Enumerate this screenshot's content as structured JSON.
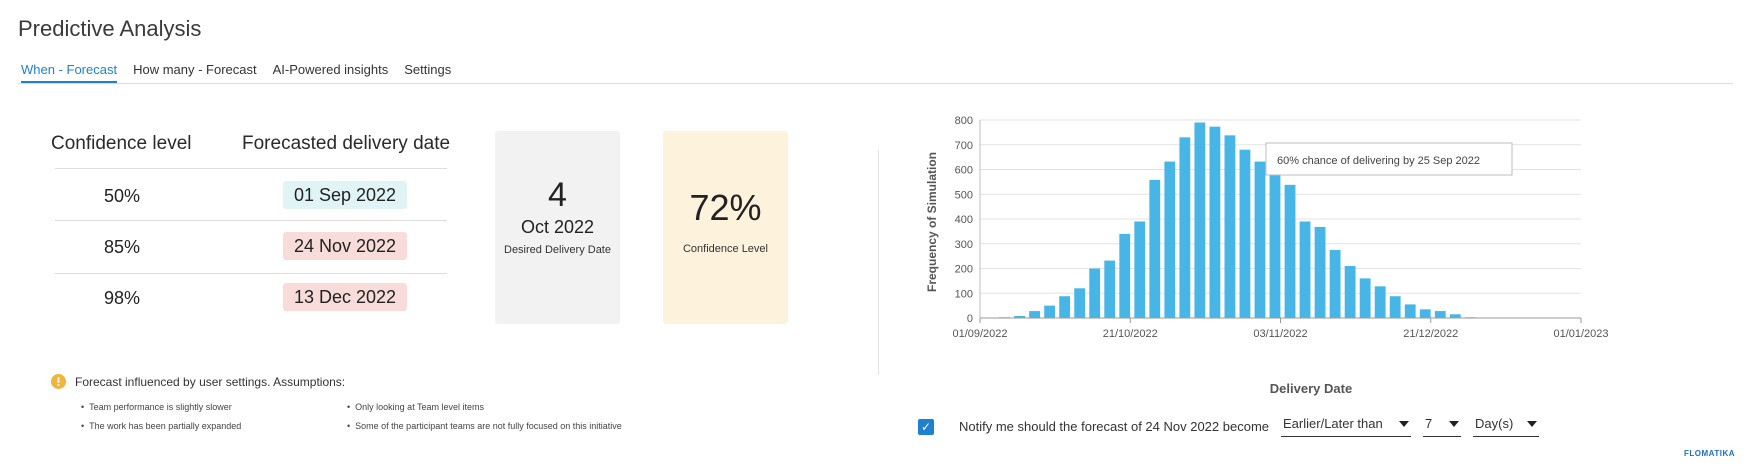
{
  "page": {
    "title": "Predictive Analysis"
  },
  "tabs": [
    {
      "label": "When - Forecast",
      "active": true
    },
    {
      "label": "How many - Forecast",
      "active": false
    },
    {
      "label": "AI-Powered insights",
      "active": false
    },
    {
      "label": "Settings",
      "active": false
    }
  ],
  "forecast_table": {
    "header_confidence": "Confidence level",
    "header_date": "Forecasted delivery date",
    "rows": [
      {
        "confidence": "50%",
        "date": "01 Sep 2022",
        "color": "#e0f4f5"
      },
      {
        "confidence": "85%",
        "date": "24 Nov 2022",
        "color": "#f7dcd9"
      },
      {
        "confidence": "98%",
        "date": "13 Dec 2022",
        "color": "#f7dcd9"
      }
    ]
  },
  "desired_card": {
    "day": "4",
    "month_year": "Oct 2022",
    "label": "Desired Delivery Date",
    "color": "#f2f2f2"
  },
  "confidence_card": {
    "value": "72%",
    "label": "Confidence Level",
    "color": "#fdf2dc"
  },
  "assumptions": {
    "icon": "warning-icon",
    "icon_color": "#f2b43c",
    "title": "Forecast influenced by user settings. Assumptions:",
    "left": [
      "Team performance is slightly slower",
      "The work has been partially expanded"
    ],
    "right": [
      "Only looking at Team level items",
      "Some of the participant teams are not fully focused on this initiative"
    ]
  },
  "chart_data": {
    "type": "bar",
    "xlabel": "Delivery Date",
    "ylabel": "Frequency of Simulation",
    "ylim": [
      0,
      800
    ],
    "yticks": [
      0,
      100,
      200,
      300,
      400,
      500,
      600,
      700,
      800
    ],
    "xtick_labels": [
      "01/09/2022",
      "21/10/2022",
      "03/11/2022",
      "21/12/2022",
      "01/01/2023"
    ],
    "grid": true,
    "bar_color": "#47b5e6",
    "values": [
      2,
      3,
      8,
      28,
      50,
      88,
      120,
      200,
      232,
      340,
      390,
      558,
      632,
      730,
      790,
      773,
      738,
      680,
      632,
      580,
      538,
      390,
      368,
      275,
      210,
      160,
      128,
      88,
      55,
      35,
      28,
      15,
      3,
      2,
      2,
      2,
      2,
      2,
      2,
      2
    ],
    "tooltip": "60% chance of delivering by 25 Sep 2022"
  },
  "notification": {
    "checked": true,
    "text": "Notify me should the forecast of 24 Nov 2022 become",
    "condition": "Earlier/Later than",
    "amount": "7",
    "unit": "Day(s)"
  },
  "brand": {
    "logo_text": "FLOMATIKA"
  }
}
